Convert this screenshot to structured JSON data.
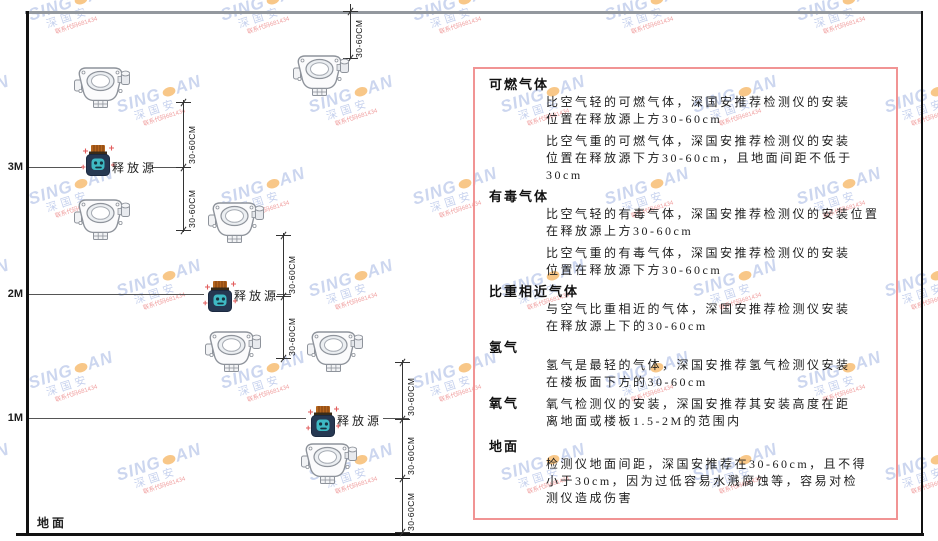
{
  "watermark": {
    "brand_left": "SING",
    "brand_right": "AN",
    "brand_cn": "深国安",
    "contact": "联系代码681434"
  },
  "axis": {
    "m3": "3M",
    "m2": "2M",
    "m1": "1M",
    "ground": "地面"
  },
  "diagram": {
    "source_label": "释放源",
    "dim_label": "30-60CM"
  },
  "panel": {
    "sections": [
      {
        "heading": "可燃气体",
        "paragraphs": [
          [
            "比空气轻的可燃气体，深国安推荐检测仪的安装",
            "位置在释放源上方30-60cm"
          ],
          [
            "比空气重的可燃气体，深国安推荐检测仪的安装",
            "位置在释放源下方30-60cm，且地面间距不低于",
            "30cm"
          ]
        ]
      },
      {
        "heading": "有毒气体",
        "paragraphs": [
          [
            "比空气轻的有毒气体，深国安推荐检测仪的安装位置",
            "在释放源上方30-60cm"
          ],
          [
            "比空气重的有毒气体，深国安推荐检测仪的安装",
            "位置在释放源下方30-60cm"
          ]
        ]
      },
      {
        "heading": "比重相近气体",
        "paragraphs": [
          [
            "与空气比重相近的气体，深国安推荐检测仪安装",
            "在释放源上下的30-60cm"
          ]
        ]
      },
      {
        "heading": "氢气",
        "paragraphs": [
          [
            "氢气是最轻的气体，深国安推荐氢气检测仪安装",
            "在楼板面下方的30-60cm"
          ]
        ]
      },
      {
        "heading": "氧气",
        "inline": true,
        "paragraphs": [
          [
            "氧气检测仪的安装，深国安推荐其安装高度在距",
            "离地面或楼板1.5-2M的范围内"
          ]
        ]
      },
      {
        "heading": "地面",
        "paragraphs": [
          [
            "检测仪地面间距，深国安推荐在30-60cm，且不得",
            "小于30cm，因为过低容易水溅腐蚀等，容易对检",
            "测仪造成伤害"
          ]
        ]
      }
    ]
  }
}
